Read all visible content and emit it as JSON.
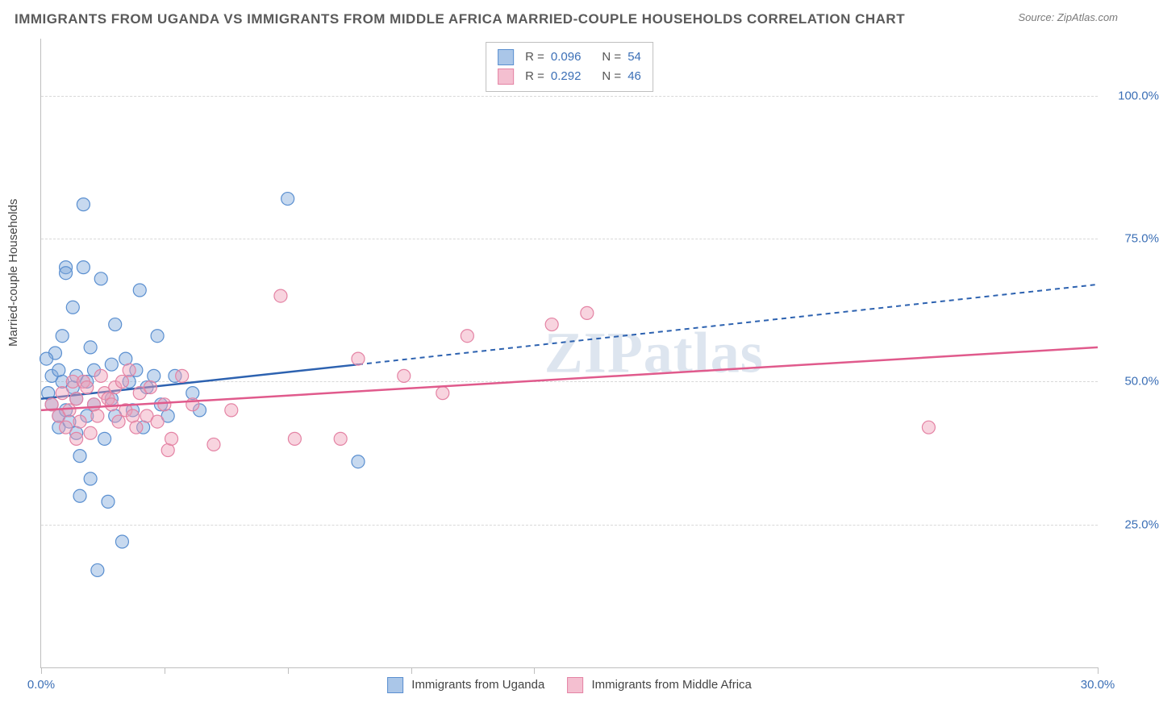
{
  "title": "IMMIGRANTS FROM UGANDA VS IMMIGRANTS FROM MIDDLE AFRICA MARRIED-COUPLE HOUSEHOLDS CORRELATION CHART",
  "source": "Source: ZipAtlas.com",
  "watermark": "ZIPatlas",
  "chart": {
    "type": "scatter",
    "ylabel": "Married-couple Households",
    "xlim": [
      0,
      30
    ],
    "ylim": [
      0,
      110
    ],
    "xtick_positions": [
      0,
      3.5,
      7,
      10.5,
      14,
      30
    ],
    "xtick_labels": {
      "0": "0.0%",
      "30": "30.0%"
    },
    "ytick_positions": [
      25,
      50,
      75,
      100
    ],
    "ytick_labels": [
      "25.0%",
      "50.0%",
      "75.0%",
      "100.0%"
    ],
    "background_color": "#ffffff",
    "grid_color": "#d8d8d8",
    "axis_color": "#bfbfbf",
    "marker_radius": 8,
    "marker_stroke_width": 1.2,
    "series": [
      {
        "name": "Immigrants from Uganda",
        "fill": "rgba(130,170,220,0.45)",
        "stroke": "#5a8fd0",
        "swatch_fill": "#aac6e8",
        "swatch_stroke": "#5a8fd0",
        "r_value": "0.096",
        "n_value": "54",
        "trend": {
          "x1": 0,
          "y1": 47,
          "x2": 9,
          "y2": 53,
          "ext_x2": 30,
          "ext_y2": 67,
          "color": "#2d62b0",
          "width": 2.5
        },
        "points": [
          [
            0.2,
            48
          ],
          [
            0.3,
            51
          ],
          [
            0.3,
            46
          ],
          [
            0.4,
            55
          ],
          [
            0.5,
            42
          ],
          [
            0.5,
            44
          ],
          [
            0.5,
            52
          ],
          [
            0.6,
            50
          ],
          [
            0.6,
            58
          ],
          [
            0.7,
            70
          ],
          [
            0.7,
            69
          ],
          [
            0.7,
            45
          ],
          [
            0.8,
            43
          ],
          [
            0.9,
            63
          ],
          [
            0.9,
            49
          ],
          [
            1.0,
            47
          ],
          [
            1.0,
            51
          ],
          [
            1.0,
            41
          ],
          [
            1.1,
            30
          ],
          [
            1.1,
            37
          ],
          [
            1.2,
            70
          ],
          [
            1.2,
            81
          ],
          [
            1.3,
            50
          ],
          [
            1.3,
            44
          ],
          [
            1.4,
            56
          ],
          [
            1.4,
            33
          ],
          [
            1.5,
            52
          ],
          [
            1.5,
            46
          ],
          [
            1.6,
            17
          ],
          [
            1.7,
            68
          ],
          [
            1.8,
            40
          ],
          [
            1.9,
            29
          ],
          [
            2.0,
            53
          ],
          [
            2.0,
            47
          ],
          [
            2.1,
            60
          ],
          [
            2.1,
            44
          ],
          [
            2.3,
            22
          ],
          [
            2.4,
            54
          ],
          [
            2.5,
            50
          ],
          [
            2.6,
            45
          ],
          [
            2.7,
            52
          ],
          [
            2.8,
            66
          ],
          [
            2.9,
            42
          ],
          [
            3.0,
            49
          ],
          [
            3.2,
            51
          ],
          [
            3.3,
            58
          ],
          [
            3.4,
            46
          ],
          [
            3.6,
            44
          ],
          [
            3.8,
            51
          ],
          [
            4.3,
            48
          ],
          [
            4.5,
            45
          ],
          [
            7.0,
            82
          ],
          [
            9.0,
            36
          ],
          [
            0.15,
            54
          ]
        ]
      },
      {
        "name": "Immigrants from Middle Africa",
        "fill": "rgba(240,160,185,0.45)",
        "stroke": "#e483a4",
        "swatch_fill": "#f4bfd0",
        "swatch_stroke": "#e483a4",
        "r_value": "0.292",
        "n_value": "46",
        "trend": {
          "x1": 0,
          "y1": 45,
          "x2": 30,
          "y2": 56,
          "color": "#e05a8c",
          "width": 2.5
        },
        "points": [
          [
            0.3,
            46
          ],
          [
            0.5,
            44
          ],
          [
            0.6,
            48
          ],
          [
            0.7,
            42
          ],
          [
            0.8,
            45
          ],
          [
            0.9,
            50
          ],
          [
            1.0,
            40
          ],
          [
            1.0,
            47
          ],
          [
            1.1,
            43
          ],
          [
            1.2,
            50
          ],
          [
            1.3,
            49
          ],
          [
            1.4,
            41
          ],
          [
            1.5,
            46
          ],
          [
            1.6,
            44
          ],
          [
            1.7,
            51
          ],
          [
            1.8,
            48
          ],
          [
            1.9,
            47
          ],
          [
            2.0,
            46
          ],
          [
            2.1,
            49
          ],
          [
            2.2,
            43
          ],
          [
            2.3,
            50
          ],
          [
            2.4,
            45
          ],
          [
            2.5,
            52
          ],
          [
            2.6,
            44
          ],
          [
            2.7,
            42
          ],
          [
            2.8,
            48
          ],
          [
            3.0,
            44
          ],
          [
            3.1,
            49
          ],
          [
            3.3,
            43
          ],
          [
            3.5,
            46
          ],
          [
            3.6,
            38
          ],
          [
            3.7,
            40
          ],
          [
            4.0,
            51
          ],
          [
            4.3,
            46
          ],
          [
            4.9,
            39
          ],
          [
            5.4,
            45
          ],
          [
            6.8,
            65
          ],
          [
            7.2,
            40
          ],
          [
            8.5,
            40
          ],
          [
            9.0,
            54
          ],
          [
            10.3,
            51
          ],
          [
            11.4,
            48
          ],
          [
            12.1,
            58
          ],
          [
            14.5,
            60
          ],
          [
            15.5,
            62
          ],
          [
            25.2,
            42
          ]
        ]
      }
    ]
  },
  "top_legend": {
    "r_label": "R =",
    "n_label": "N ="
  },
  "typography": {
    "title_fontsize": 17,
    "label_fontsize": 15,
    "tick_fontsize": 15,
    "tick_color": "#3b6fb6",
    "text_color": "#444"
  }
}
